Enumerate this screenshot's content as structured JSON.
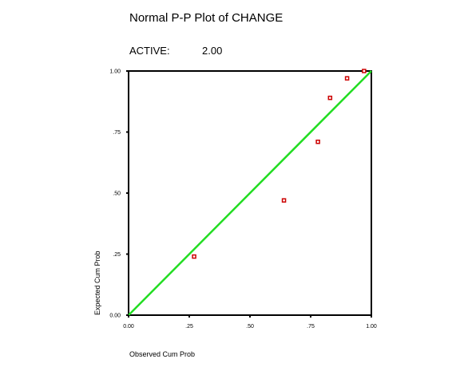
{
  "header": {
    "title": "Normal P-P Plot of CHANGE",
    "subtitle_label": "ACTIVE:",
    "subtitle_value": "2.00"
  },
  "chart_data": {
    "type": "scatter",
    "title": "Normal P-P Plot of CHANGE",
    "xlabel": "Observed Cum Prob",
    "ylabel": "Expected Cum Prob",
    "xlim": [
      0,
      1
    ],
    "ylim": [
      0,
      1
    ],
    "x_ticks": [
      "0.00",
      ".25",
      ".50",
      ".75",
      "1.00"
    ],
    "y_ticks": [
      "0.00",
      ".25",
      ".50",
      ".75",
      "1.00"
    ],
    "reference_line": {
      "from": [
        0,
        0
      ],
      "to": [
        1,
        1
      ],
      "color": "#22dd22"
    },
    "point_color": "#cc0000",
    "points": [
      {
        "x": 0.27,
        "y": 0.24
      },
      {
        "x": 0.64,
        "y": 0.47
      },
      {
        "x": 0.78,
        "y": 0.71
      },
      {
        "x": 0.83,
        "y": 0.89
      },
      {
        "x": 0.9,
        "y": 0.97
      },
      {
        "x": 0.97,
        "y": 1.0
      }
    ],
    "grid": false,
    "legend": "none"
  }
}
